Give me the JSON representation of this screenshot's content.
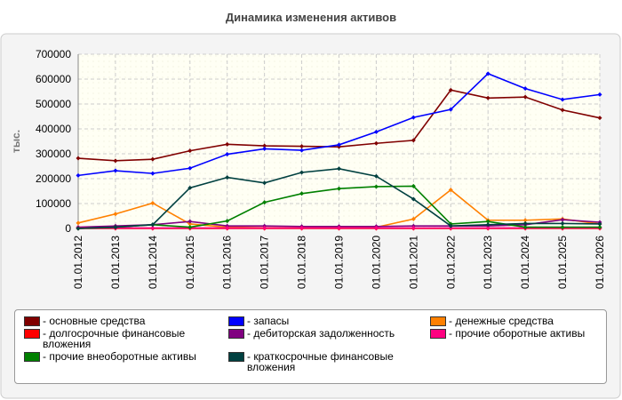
{
  "chart_data": {
    "type": "line",
    "title": "Динамика изменения активов",
    "y_label": "тыс.",
    "categories": [
      "01.01.2012",
      "01.01.2013",
      "01.01.2014",
      "01.01.2015",
      "01.01.2016",
      "01.01.2017",
      "01.01.2018",
      "01.01.2019",
      "01.01.2020",
      "01.01.2021",
      "01.01.2022",
      "01.01.2023",
      "01.01.2024",
      "01.01.2025",
      "01.01.2026"
    ],
    "ylim": [
      0,
      700000
    ],
    "yticks": [
      0,
      100000,
      200000,
      300000,
      400000,
      500000,
      600000,
      700000
    ],
    "grid": true,
    "series": [
      {
        "name": "- основные средства",
        "color": "#800000",
        "values": [
          282000,
          272000,
          278000,
          312000,
          338000,
          332000,
          330000,
          328000,
          342000,
          354000,
          556000,
          524000,
          528000,
          476000,
          444000
        ]
      },
      {
        "name": "- запасы",
        "color": "#0000ff",
        "values": [
          213000,
          232000,
          221000,
          242000,
          298000,
          320000,
          314000,
          336000,
          388000,
          446000,
          478000,
          622000,
          562000,
          518000,
          538000
        ]
      },
      {
        "name": "- денежные средства",
        "color": "#ff8000",
        "values": [
          22000,
          58000,
          102000,
          18000,
          5000,
          3000,
          3000,
          3000,
          5000,
          38000,
          155000,
          33000,
          33000,
          38000,
          18000
        ]
      },
      {
        "name": "- долгосрочные финансовые вложения",
        "color": "#ff0000",
        "values": [
          0,
          0,
          0,
          0,
          0,
          0,
          0,
          0,
          0,
          0,
          0,
          0,
          0,
          0,
          0
        ]
      },
      {
        "name": "- дебиторская задолженность",
        "color": "#800080",
        "values": [
          5000,
          10000,
          15000,
          28000,
          10000,
          10000,
          8000,
          8000,
          8000,
          10000,
          10000,
          10000,
          15000,
          35000,
          25000
        ]
      },
      {
        "name": "- прочие оборотные активы",
        "color": "#ff0080",
        "values": [
          2000,
          2000,
          2000,
          2000,
          2000,
          2000,
          2000,
          2000,
          2000,
          2000,
          2000,
          2000,
          2000,
          2000,
          2000
        ]
      },
      {
        "name": "- прочие внеоборотные активы",
        "color": "#008000",
        "values": [
          0,
          5000,
          15000,
          5000,
          30000,
          105000,
          140000,
          160000,
          168000,
          170000,
          18000,
          28000,
          5000,
          5000,
          5000
        ]
      },
      {
        "name": "- краткосрочные финансовые вложения",
        "color": "#004040",
        "values": [
          0,
          5000,
          15000,
          163000,
          205000,
          183000,
          225000,
          240000,
          210000,
          118000,
          10000,
          15000,
          20000,
          20000,
          18000
        ]
      }
    ]
  }
}
